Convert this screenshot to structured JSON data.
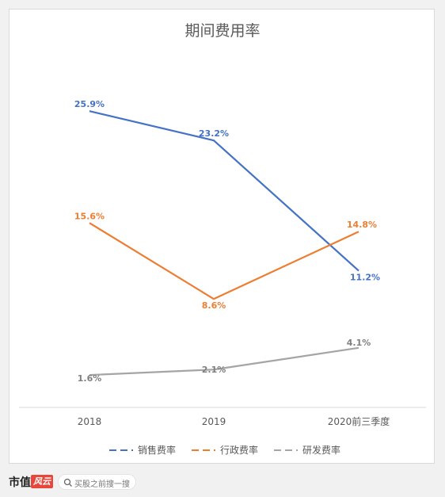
{
  "chart_data": {
    "type": "line",
    "title": "期间费用率",
    "categories": [
      "2018",
      "2019",
      "2020前三季度"
    ],
    "series": [
      {
        "name": "销售费率",
        "values": [
          25.9,
          23.2,
          11.2
        ],
        "labels": [
          "25.9%",
          "23.2%",
          "11.2%"
        ],
        "color": "#4472c4",
        "label_color": "#4472c4"
      },
      {
        "name": "行政费率",
        "values": [
          15.6,
          8.6,
          14.8
        ],
        "labels": [
          "15.6%",
          "8.6%",
          "14.8%"
        ],
        "color": "#ed7d31",
        "label_color": "#ed7d31"
      },
      {
        "name": "研发费率",
        "values": [
          1.6,
          2.1,
          4.1
        ],
        "labels": [
          "1.6%",
          "2.1%",
          "4.1%"
        ],
        "color": "#a5a5a5",
        "label_color": "#7f7f7f"
      }
    ],
    "legend_position": "bottom",
    "grid": false,
    "ylim": [
      0,
      30
    ]
  },
  "footer": {
    "brand": "市值",
    "brand_logo": "风云",
    "search_icon": "search-icon",
    "search_text": "买股之前搜一搜"
  }
}
